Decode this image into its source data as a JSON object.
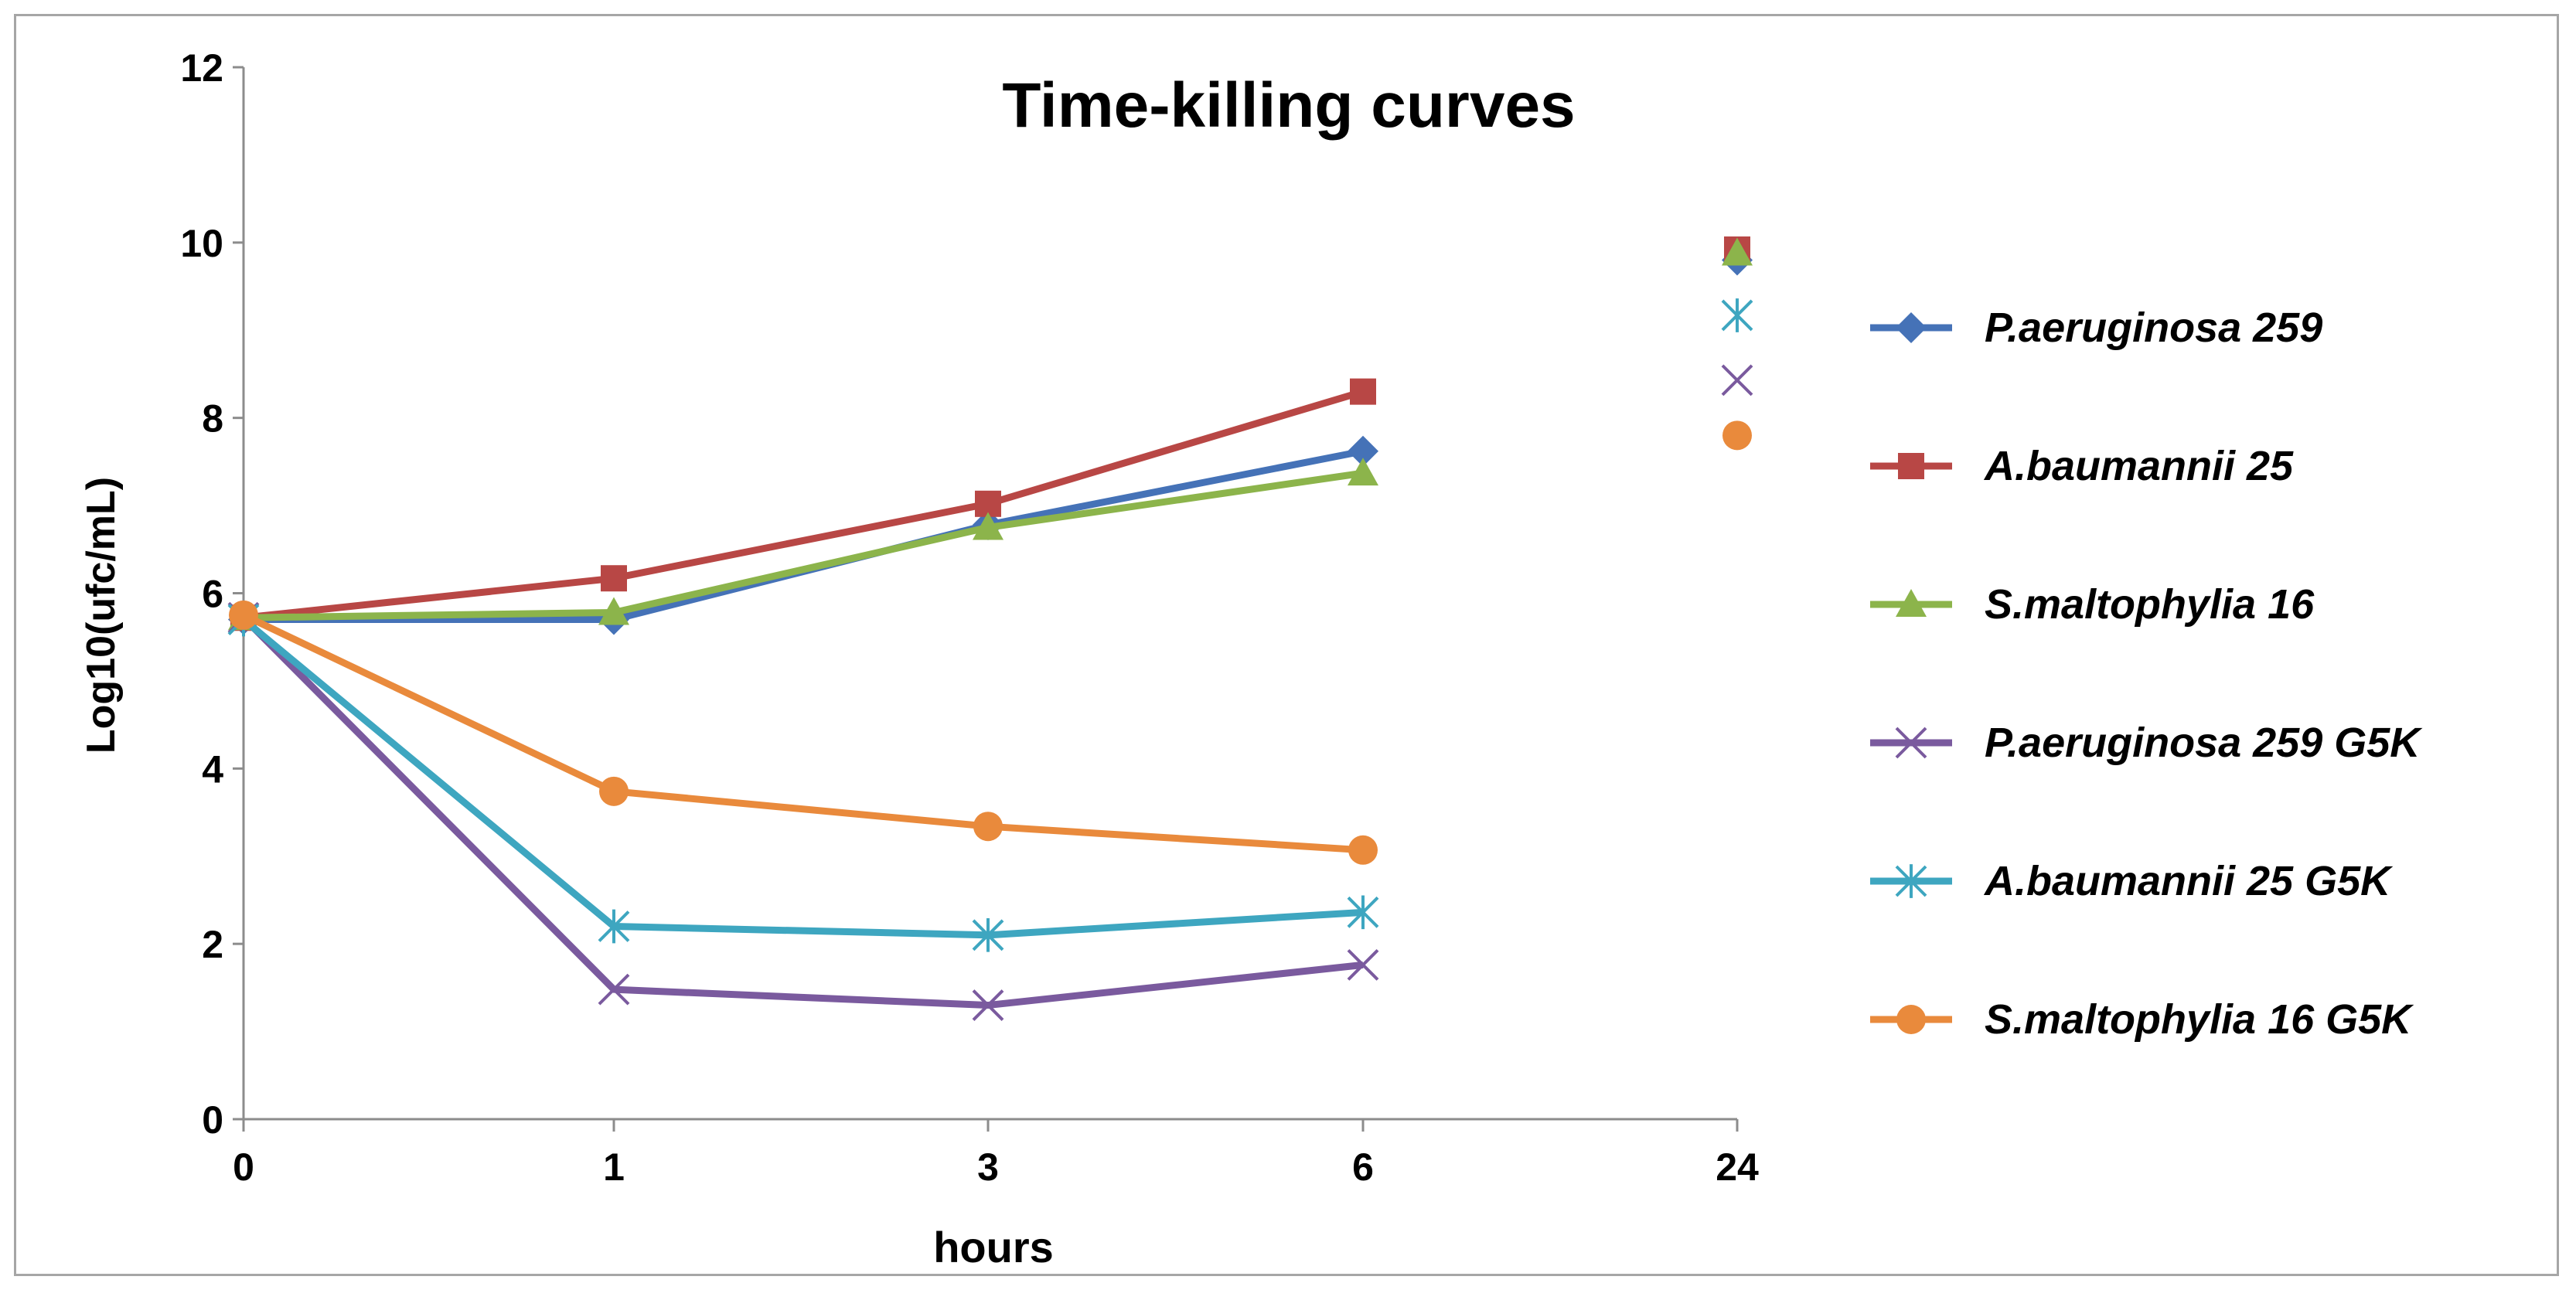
{
  "chart_data": {
    "type": "line",
    "title": "Time-killing curves",
    "xlabel": "hours",
    "ylabel": "Log10(ufc/mL)",
    "categories": [
      "0",
      "1",
      "3",
      "6",
      "24"
    ],
    "yticks": [
      "0",
      "2",
      "4",
      "6",
      "8",
      "10",
      "12"
    ],
    "ylim": [
      0,
      12
    ],
    "grid": false,
    "legend_position": "right",
    "series": [
      {
        "name": "P.aeruginosa 259",
        "color": "#4572b7",
        "marker": "diamond",
        "values": [
          5.7,
          5.7,
          6.78,
          7.62,
          9.8
        ]
      },
      {
        "name": "A.baumannii 25",
        "color": "#b84745",
        "marker": "square",
        "values": [
          5.72,
          6.17,
          7.02,
          8.3,
          9.92
        ]
      },
      {
        "name": "S.maltophylia 16",
        "color": "#8cb44b",
        "marker": "triangle",
        "values": [
          5.72,
          5.78,
          6.75,
          7.37,
          9.88
        ]
      },
      {
        "name": "P.aeruginosa 259 G5K",
        "color": "#7a5a9e",
        "marker": "x",
        "values": [
          5.72,
          1.48,
          1.3,
          1.76,
          8.43
        ]
      },
      {
        "name": "A.baumannii 25 G5K",
        "color": "#3ea6c0",
        "marker": "asterisk",
        "values": [
          5.7,
          2.2,
          2.1,
          2.36,
          9.17
        ]
      },
      {
        "name": "S.maltophylia 16 G5K",
        "color": "#e98a3c",
        "marker": "circle",
        "values": [
          5.75,
          3.74,
          3.34,
          3.07,
          7.8
        ]
      }
    ]
  }
}
